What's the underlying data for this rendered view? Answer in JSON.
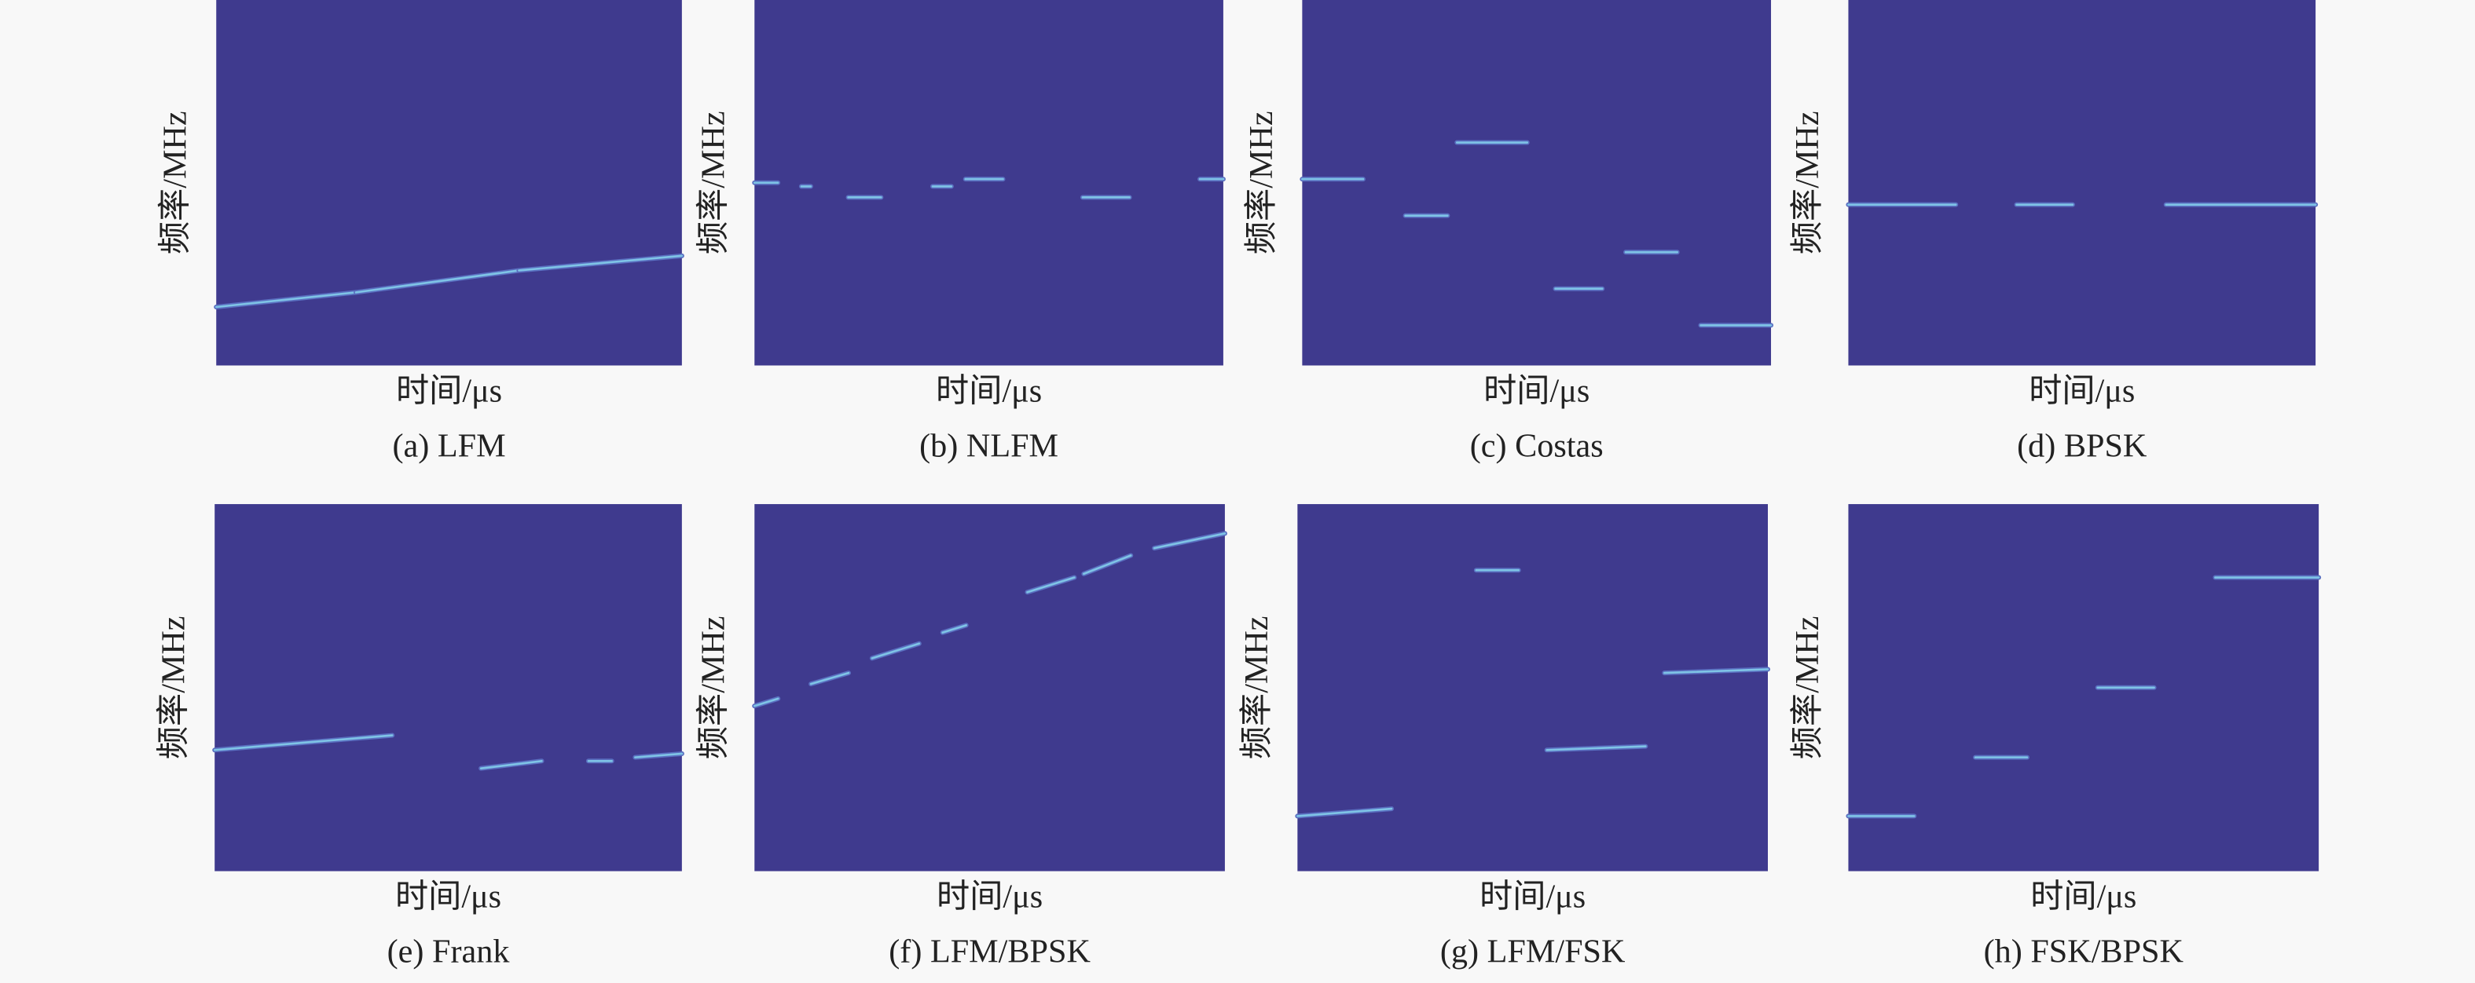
{
  "panels": [
    {
      "ylabel": "频率/MHz",
      "xlabel": "时间/μs",
      "caption": "(a) LFM"
    },
    {
      "ylabel": "频率/MHz",
      "xlabel": "时间/μs",
      "caption": "(b) NLFM"
    },
    {
      "ylabel": "频率/MHz",
      "xlabel": "时间/μs",
      "caption": "(c) Costas"
    },
    {
      "ylabel": "频率/MHz",
      "xlabel": "时间/μs",
      "caption": "(d) BPSK"
    },
    {
      "ylabel": "频率/MHz",
      "xlabel": "时间/μs",
      "caption": "(e) Frank"
    },
    {
      "ylabel": "频率/MHz",
      "xlabel": "时间/μs",
      "caption": "(f) LFM/BPSK"
    },
    {
      "ylabel": "频率/MHz",
      "xlabel": "时间/μs",
      "caption": "(g) LFM/FSK"
    },
    {
      "ylabel": "频率/MHz",
      "xlabel": "时间/μs",
      "caption": "(h) FSK/BPSK"
    }
  ]
}
